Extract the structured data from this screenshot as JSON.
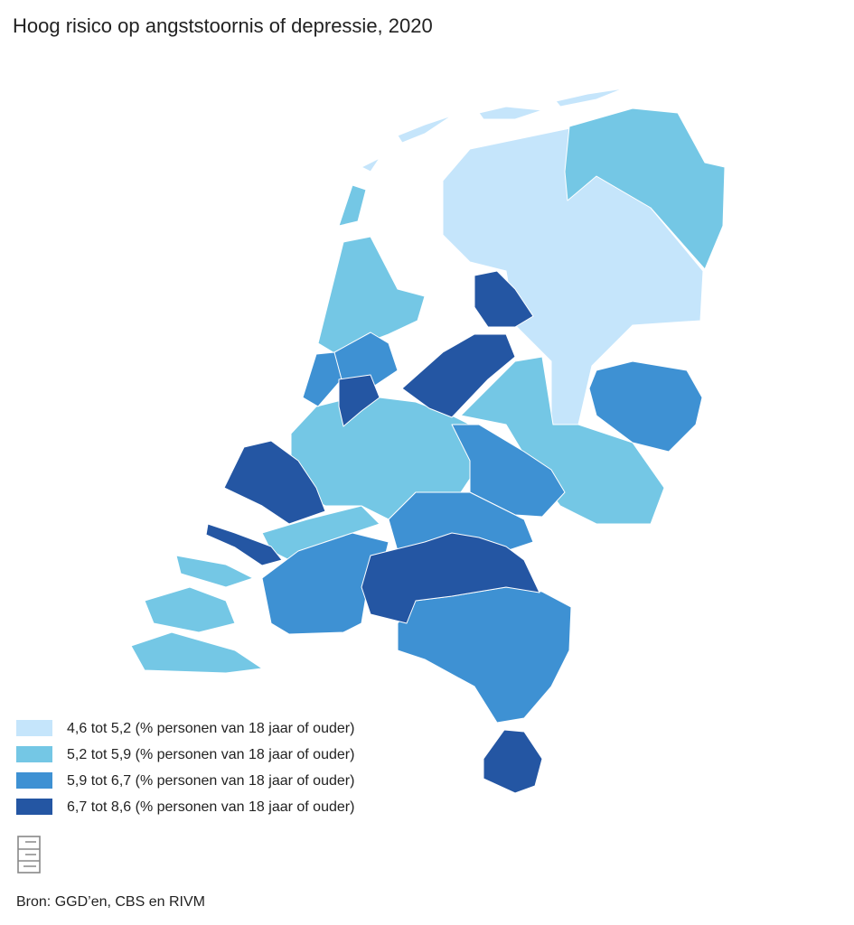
{
  "title": "Hoog risico op angststoornis of depressie, 2020",
  "legend": [
    {
      "label": "4,6 tot 5,2 (% personen van 18 jaar of ouder)",
      "color": "#c5e5fb"
    },
    {
      "label": "5,2 tot 5,9 (% personen van 18 jaar of ouder)",
      "color": "#74c7e5"
    },
    {
      "label": "5,9 tot 6,7 (% personen van 18 jaar of ouder)",
      "color": "#3e91d3"
    },
    {
      "label": "6,7 tot 8,6 (% personen van 18 jaar of ouder)",
      "color": "#2456a3"
    }
  ],
  "source": "Bron: GGD’en, CBS en RIVM"
}
